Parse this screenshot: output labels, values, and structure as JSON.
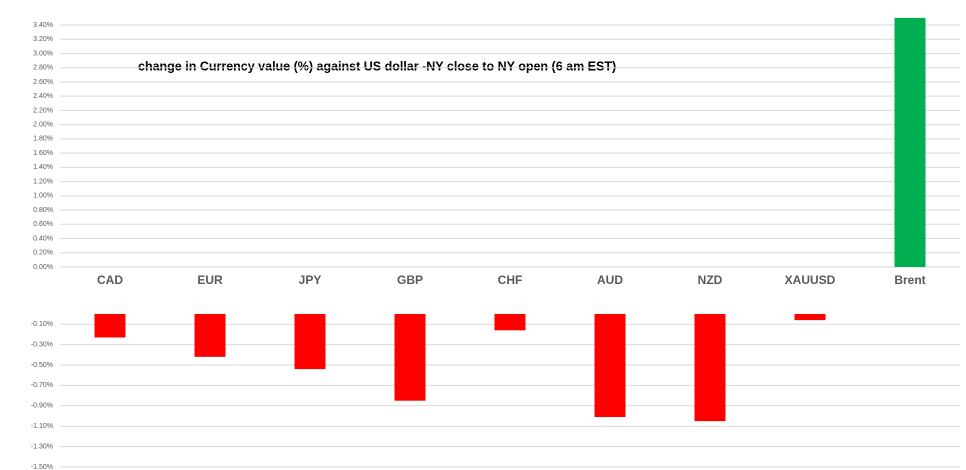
{
  "chart_data": {
    "type": "bar",
    "title": "change in Currency value (%)  against US dollar -NY close to NY open (6 am EST)",
    "categories": [
      "CAD",
      "EUR",
      "JPY",
      "GBP",
      "CHF",
      "AUD",
      "NZD",
      "XAUUSD",
      "Brent"
    ],
    "values": [
      -0.23,
      -0.42,
      -0.54,
      -0.85,
      -0.16,
      -1.01,
      -1.05,
      -0.06,
      3.5
    ],
    "colors": [
      "#ff0000",
      "#ff0000",
      "#ff0000",
      "#ff0000",
      "#ff0000",
      "#ff0000",
      "#ff0000",
      "#ff0000",
      "#00b050"
    ],
    "ylim": [
      0,
      3.4
    ],
    "yticks": [
      {
        "value": 0,
        "label": "0.00%"
      },
      {
        "value": 0.2,
        "label": "0.20%"
      },
      {
        "value": 0.4,
        "label": "0.40%"
      },
      {
        "value": 0.6,
        "label": "0.60%"
      },
      {
        "value": 0.8,
        "label": "0.80%"
      },
      {
        "value": 1.0,
        "label": "1.00%"
      },
      {
        "value": 1.2,
        "label": "1.20%"
      },
      {
        "value": 1.4,
        "label": "1.40%"
      },
      {
        "value": 1.6,
        "label": "1.60%"
      },
      {
        "value": 1.8,
        "label": "1.80%"
      },
      {
        "value": 2.0,
        "label": "2.00%"
      },
      {
        "value": 2.2,
        "label": "2.20%"
      },
      {
        "value": 2.4,
        "label": "2.40%"
      },
      {
        "value": 2.6,
        "label": "2.60%"
      },
      {
        "value": 2.8,
        "label": "2.80%"
      },
      {
        "value": 3.0,
        "label": "3.00%"
      },
      {
        "value": 3.2,
        "label": "3.20%"
      },
      {
        "value": 3.4,
        "label": "3.40%"
      }
    ],
    "y2lim": [
      -1.5,
      0
    ],
    "y2ticks": [
      {
        "value": -0.1,
        "label": "-0.10%"
      },
      {
        "value": -0.3,
        "label": "-0.30%"
      },
      {
        "value": -0.5,
        "label": "-0.50%"
      },
      {
        "value": -0.7,
        "label": "-0.70%"
      },
      {
        "value": -0.9,
        "label": "-0.90%"
      },
      {
        "value": -1.1,
        "label": "-1.10%"
      },
      {
        "value": -1.3,
        "label": "-1.30%"
      },
      {
        "value": -1.5,
        "label": "-1.50%"
      }
    ],
    "grid": true
  }
}
